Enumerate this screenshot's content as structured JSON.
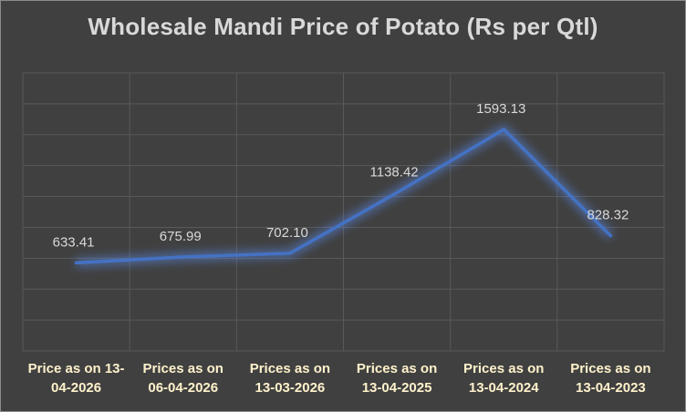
{
  "chart_data": {
    "type": "line",
    "title": "Wholesale Mandi Price of Potato (Rs per Qtl)",
    "categories": [
      "Price as on 13-04-2026",
      "Prices as on 06-04-2026",
      "Prices as on 13-03-2026",
      "Prices as on 13-04-2025",
      "Prices as on 13-04-2024",
      "Prices as on 13-04-2023"
    ],
    "category_lines": [
      [
        "Price as on 13-",
        "04-2026"
      ],
      [
        "Prices as on",
        "06-04-2026"
      ],
      [
        "Prices as on",
        "13-03-2026"
      ],
      [
        "Prices as on",
        "13-04-2025"
      ],
      [
        "Prices as on",
        "13-04-2024"
      ],
      [
        "Prices as on",
        "13-04-2023"
      ]
    ],
    "values": [
      633.41,
      675.99,
      702.1,
      1138.42,
      1593.13,
      828.32
    ],
    "data_labels": [
      "633.41",
      "675.99",
      "702.10",
      "1138.42",
      "1593.13",
      "828.32"
    ],
    "xlabel": "",
    "ylabel": "",
    "ylim": [
      0,
      2000
    ],
    "grid": true,
    "line_color": "#4472c4",
    "glow_color": "#5b8ff9",
    "label_color": "#d9d9d9",
    "category_color": "#fff2cc",
    "grid_color": "#595959"
  }
}
